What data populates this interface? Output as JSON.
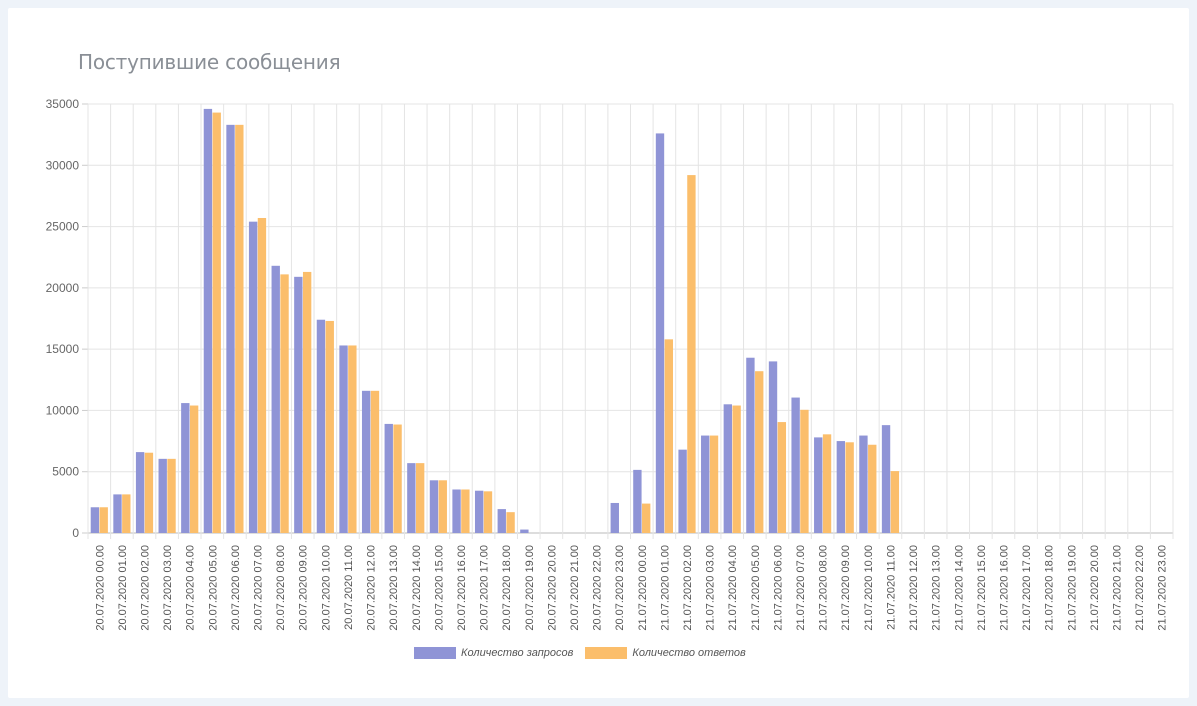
{
  "chart_data": {
    "type": "bar",
    "title": "Поступившие сообщения",
    "categories": [
      "20.07.2020 00.00",
      "20.07.2020 01.00",
      "20.07.2020 02.00",
      "20.07.2020 03.00",
      "20.07.2020 04.00",
      "20.07.2020 05.00",
      "20.07.2020 06.00",
      "20.07.2020 07.00",
      "20.07.2020 08.00",
      "20.07.2020 09.00",
      "20.07.2020 10.00",
      "20.07.2020 11.00",
      "20.07.2020 12.00",
      "20.07.2020 13.00",
      "20.07.2020 14.00",
      "20.07.2020 15.00",
      "20.07.2020 16.00",
      "20.07.2020 17.00",
      "20.07.2020 18.00",
      "20.07.2020 19.00",
      "20.07.2020 20.00",
      "20.07.2020 21.00",
      "20.07.2020 22.00",
      "20.07.2020 23.00",
      "21.07.2020 00.00",
      "21.07.2020 01.00",
      "21.07.2020 02.00",
      "21.07.2020 03.00",
      "21.07.2020 04.00",
      "21.07.2020 05.00",
      "21.07.2020 06.00",
      "21.07.2020 07.00",
      "21.07.2020 08.00",
      "21.07.2020 09.00",
      "21.07.2020 10.00",
      "21.07.2020 11.00",
      "21.07.2020 12.00",
      "21.07.2020 13.00",
      "21.07.2020 14.00",
      "21.07.2020 15.00",
      "21.07.2020 16.00",
      "21.07.2020 17.00",
      "21.07.2020 18.00",
      "21.07.2020 19.00",
      "21.07.2020 20.00",
      "21.07.2020 21.00",
      "21.07.2020 22.00",
      "21.07.2020 23.00"
    ],
    "series": [
      {
        "name": "Количество запросов",
        "color": "#8f94d6",
        "values": [
          2100,
          3150,
          6600,
          6050,
          10600,
          34600,
          33300,
          25400,
          21800,
          20900,
          17400,
          15300,
          11600,
          8900,
          5700,
          4300,
          3550,
          3450,
          1950,
          280,
          0,
          0,
          0,
          2450,
          5150,
          32600,
          6800,
          7950,
          10500,
          14300,
          14000,
          11050,
          7800,
          7500,
          7950,
          8800,
          0,
          0,
          0,
          0,
          0,
          0,
          0,
          0,
          0,
          0,
          0,
          0
        ]
      },
      {
        "name": "Количество ответов",
        "color": "#fbbe6b",
        "values": [
          2100,
          3150,
          6550,
          6050,
          10400,
          34300,
          33300,
          25700,
          21100,
          21300,
          17300,
          15300,
          11600,
          8850,
          5700,
          4300,
          3550,
          3400,
          1700,
          0,
          0,
          0,
          0,
          0,
          2400,
          15800,
          29200,
          7950,
          10400,
          13200,
          9050,
          10050,
          8050,
          7400,
          7200,
          5050,
          0,
          0,
          0,
          0,
          0,
          0,
          0,
          0,
          0,
          0,
          0,
          0
        ]
      }
    ],
    "ylim": [
      0,
      35000
    ],
    "yticks": [
      "0",
      "5000",
      "10000",
      "15000",
      "20000",
      "25000",
      "30000",
      "35000"
    ],
    "grid": true,
    "legend_position": "bottom-center"
  }
}
